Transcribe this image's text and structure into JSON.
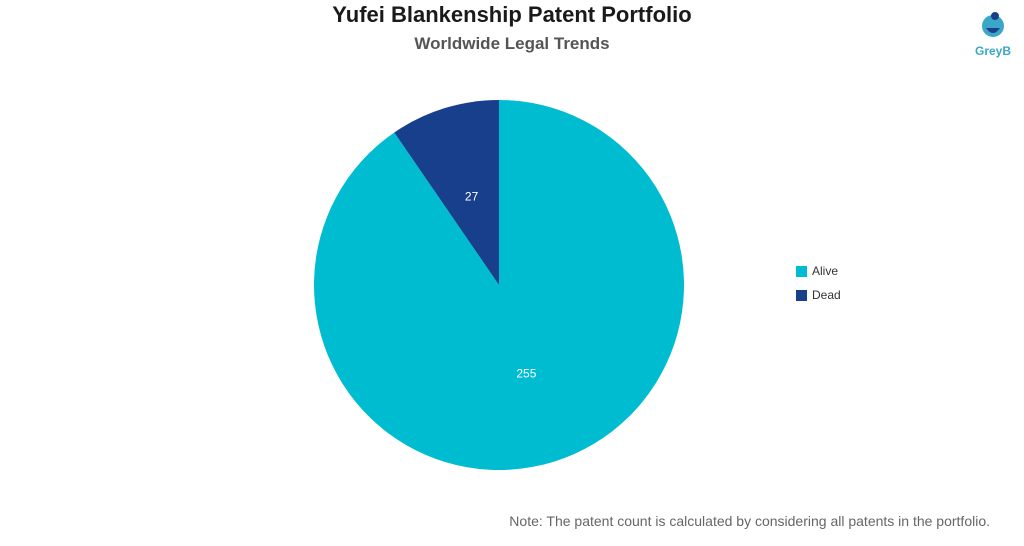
{
  "chart_data": {
    "type": "pie",
    "title": "Yufei Blankenship Patent Portfolio",
    "subtitle": "Worldwide Legal Trends",
    "slices": [
      {
        "label": "Alive",
        "value": 255,
        "color": "#00bcd0"
      },
      {
        "label": "Dead",
        "value": 27,
        "color": "#183f8b"
      }
    ],
    "legend_position": "right"
  },
  "logo": {
    "text": "GreyB"
  },
  "note": "Note: The patent count is calculated by considering all patents in the portfolio."
}
